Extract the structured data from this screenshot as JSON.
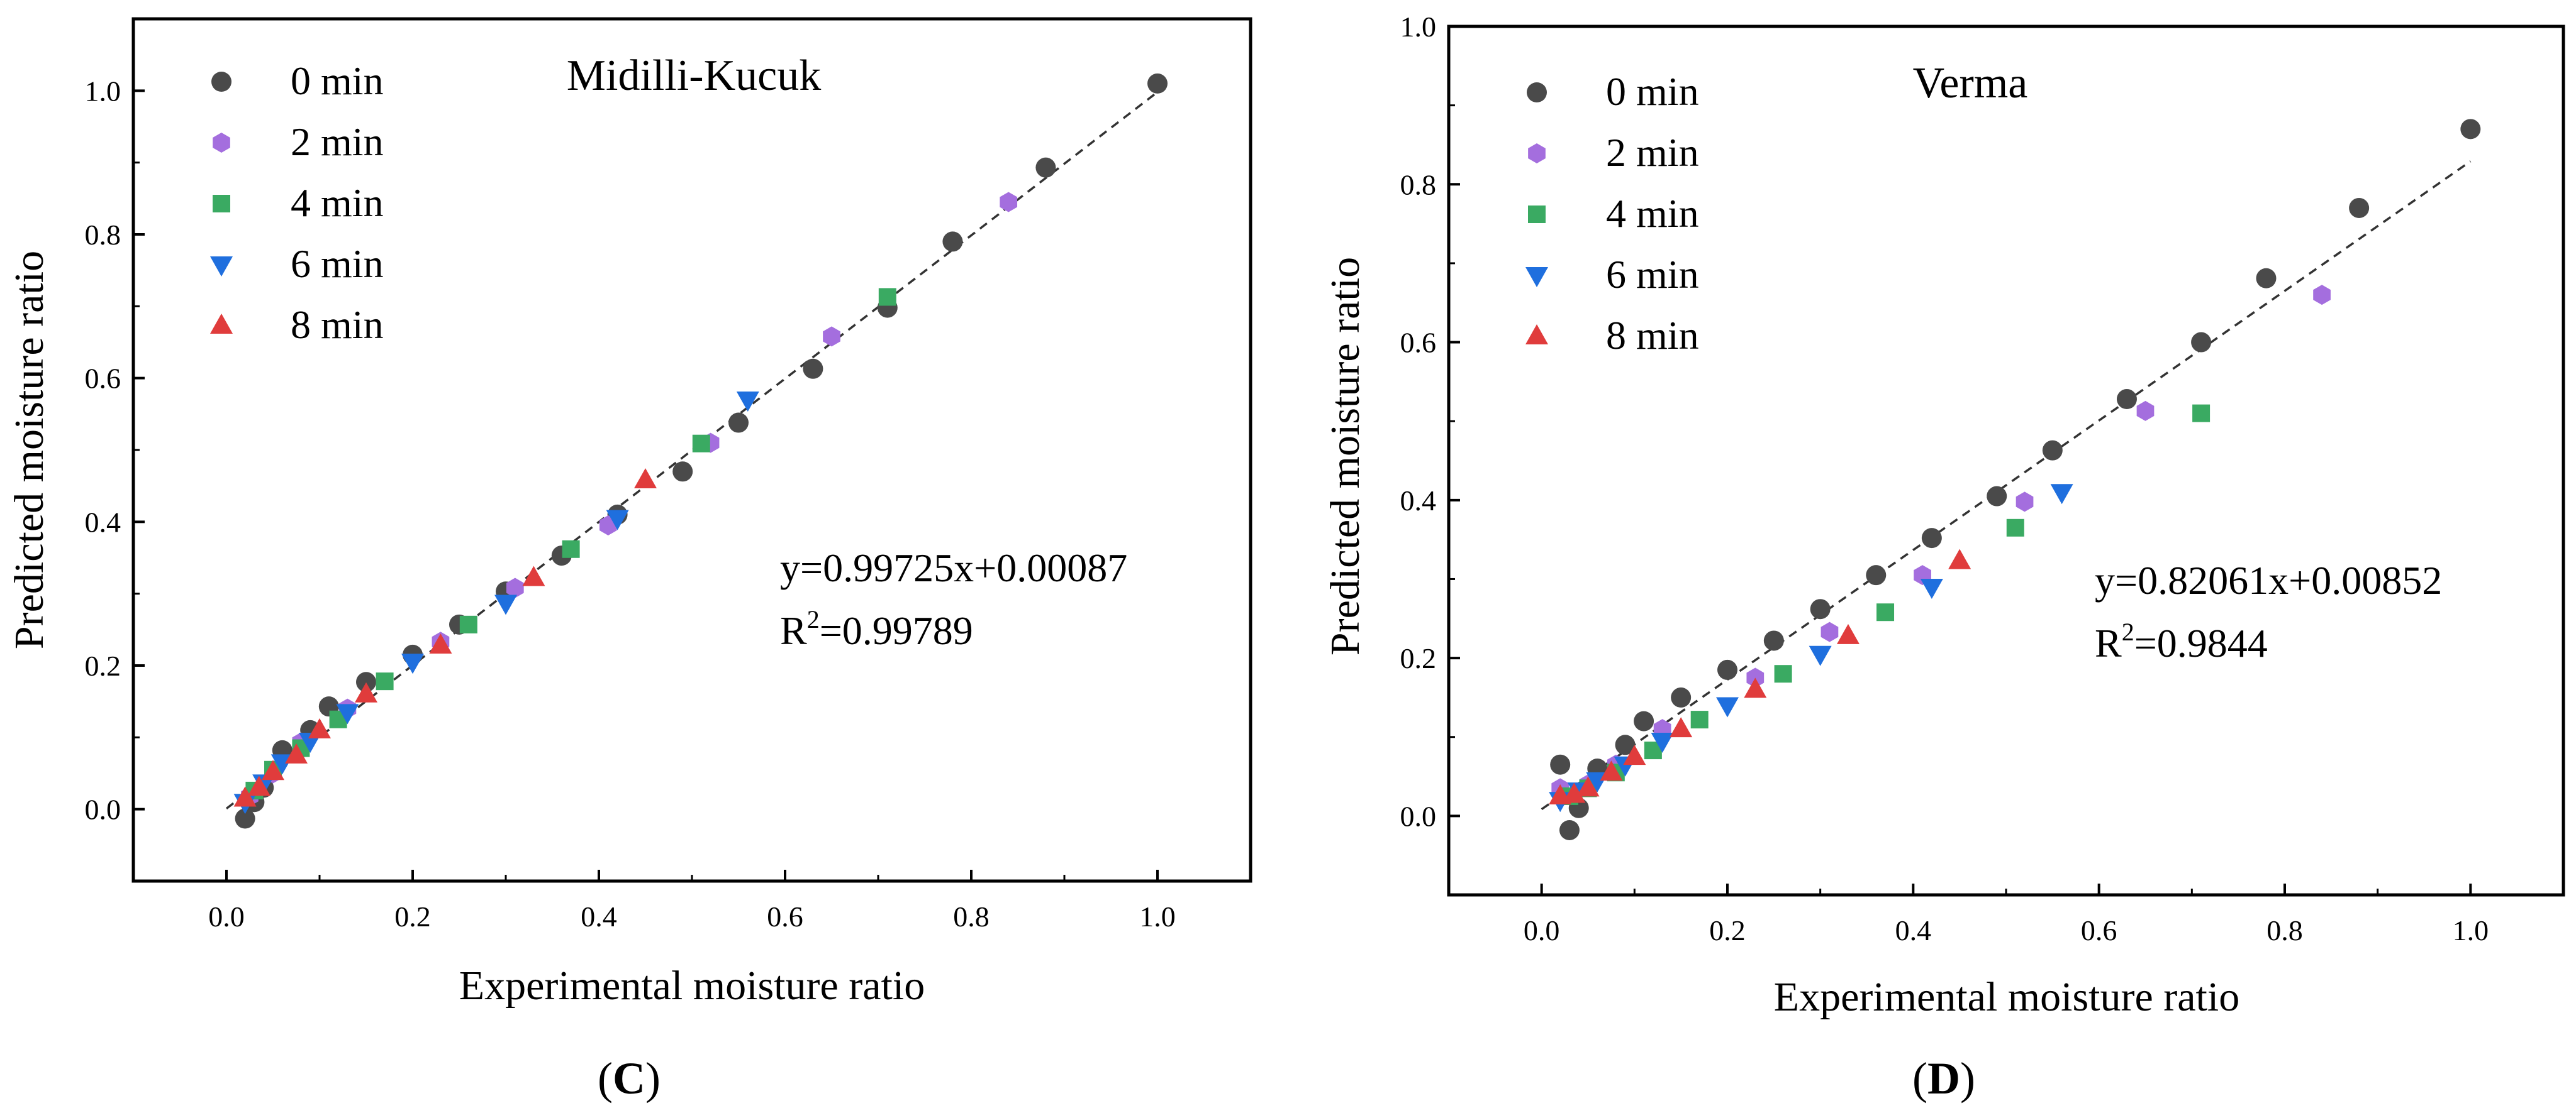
{
  "chart_data": [
    {
      "type": "scatter",
      "panel_label": "(C)",
      "panel_letter": "C",
      "title": "Midilli-Kucuk",
      "xlabel": "Experimental moisture ratio",
      "ylabel": "Predicted moisture ratio",
      "xlim": [
        -0.1,
        1.1
      ],
      "ylim": [
        -0.1,
        1.1
      ],
      "xticks": [
        "0.0",
        "0.2",
        "0.4",
        "0.6",
        "0.8",
        "1.0"
      ],
      "yticks": [
        "0.0",
        "0.2",
        "0.4",
        "0.6",
        "0.8",
        "1.0"
      ],
      "fit": {
        "slope": 0.99725,
        "intercept": 0.00087,
        "equation": "y=0.99725x+0.00087",
        "r2_prefix": "R",
        "r2_sup": "2",
        "r2_value": "=0.99789"
      },
      "legend_position": "top-left",
      "series": [
        {
          "name": "0 min",
          "color": "#4a4a4a",
          "marker": "circle",
          "x": [
            0.02,
            0.03,
            0.04,
            0.06,
            0.09,
            0.11,
            0.15,
            0.2,
            0.25,
            0.3,
            0.36,
            0.42,
            0.49,
            0.55,
            0.63,
            0.71,
            0.78,
            0.88,
            1.0
          ],
          "y": [
            -0.013,
            0.01,
            0.03,
            0.082,
            0.11,
            0.143,
            0.177,
            0.215,
            0.257,
            0.303,
            0.353,
            0.41,
            0.47,
            0.538,
            0.613,
            0.698,
            0.79,
            0.893,
            1.01
          ]
        },
        {
          "name": "2 min",
          "color": "#a46ede",
          "marker": "hexagon",
          "x": [
            0.025,
            0.05,
            0.08,
            0.13,
            0.23,
            0.31,
            0.41,
            0.52,
            0.65,
            0.84
          ],
          "y": [
            0.018,
            0.05,
            0.093,
            0.14,
            0.233,
            0.308,
            0.395,
            0.51,
            0.658,
            0.845
          ]
        },
        {
          "name": "4 min",
          "color": "#3aaa62",
          "marker": "square",
          "x": [
            0.03,
            0.05,
            0.08,
            0.12,
            0.17,
            0.26,
            0.37,
            0.51,
            0.71
          ],
          "y": [
            0.026,
            0.055,
            0.085,
            0.125,
            0.178,
            0.257,
            0.362,
            0.509,
            0.713
          ]
        },
        {
          "name": "6 min",
          "color": "#1f6fde",
          "marker": "triangle-down",
          "x": [
            0.02,
            0.04,
            0.06,
            0.09,
            0.13,
            0.2,
            0.3,
            0.42,
            0.56
          ],
          "y": [
            0.01,
            0.037,
            0.065,
            0.095,
            0.135,
            0.205,
            0.287,
            0.405,
            0.57
          ]
        },
        {
          "name": "8 min",
          "color": "#e03c3c",
          "marker": "triangle-up",
          "x": [
            0.02,
            0.035,
            0.05,
            0.075,
            0.1,
            0.15,
            0.23,
            0.33,
            0.45
          ],
          "y": [
            0.015,
            0.03,
            0.052,
            0.075,
            0.11,
            0.16,
            0.228,
            0.322,
            0.458
          ]
        }
      ]
    },
    {
      "type": "scatter",
      "panel_label": "(D)",
      "panel_letter": "D",
      "title": "Verma",
      "xlabel": "Experimental moisture ratio",
      "ylabel": "Predicted moisture ratio",
      "xlim": [
        -0.1,
        1.1
      ],
      "ylim": [
        -0.1,
        1.0
      ],
      "xticks": [
        "0.0",
        "0.2",
        "0.4",
        "0.6",
        "0.8",
        "1.0"
      ],
      "yticks": [
        "0.0",
        "0.2",
        "0.4",
        "0.6",
        "0.8",
        "1.0"
      ],
      "fit": {
        "slope": 0.82061,
        "intercept": 0.00852,
        "equation": "y=0.82061x+0.00852",
        "r2_prefix": "R",
        "r2_sup": "2",
        "r2_value": "=0.9844"
      },
      "legend_position": "top-left",
      "series": [
        {
          "name": "0 min",
          "color": "#4a4a4a",
          "marker": "circle",
          "x": [
            0.02,
            0.03,
            0.04,
            0.06,
            0.09,
            0.11,
            0.15,
            0.2,
            0.25,
            0.3,
            0.36,
            0.42,
            0.49,
            0.55,
            0.63,
            0.71,
            0.78,
            0.88,
            1.0
          ],
          "y": [
            0.065,
            -0.018,
            0.01,
            0.06,
            0.09,
            0.12,
            0.15,
            0.185,
            0.222,
            0.262,
            0.305,
            0.352,
            0.405,
            0.463,
            0.528,
            0.6,
            0.681,
            0.77,
            0.87
          ]
        },
        {
          "name": "2 min",
          "color": "#a46ede",
          "marker": "hexagon",
          "x": [
            0.02,
            0.05,
            0.08,
            0.13,
            0.23,
            0.31,
            0.41,
            0.52,
            0.65,
            0.84
          ],
          "y": [
            0.035,
            0.04,
            0.065,
            0.11,
            0.175,
            0.233,
            0.305,
            0.398,
            0.513,
            0.66
          ]
        },
        {
          "name": "4 min",
          "color": "#3aaa62",
          "marker": "square",
          "x": [
            0.03,
            0.05,
            0.08,
            0.12,
            0.17,
            0.26,
            0.37,
            0.51,
            0.71
          ],
          "y": [
            0.025,
            0.035,
            0.055,
            0.083,
            0.122,
            0.18,
            0.258,
            0.365,
            0.51
          ]
        },
        {
          "name": "6 min",
          "color": "#1f6fde",
          "marker": "triangle-down",
          "x": [
            0.02,
            0.04,
            0.06,
            0.09,
            0.13,
            0.2,
            0.3,
            0.42,
            0.56
          ],
          "y": [
            0.02,
            0.032,
            0.045,
            0.065,
            0.095,
            0.14,
            0.205,
            0.29,
            0.41
          ]
        },
        {
          "name": "8 min",
          "color": "#e03c3c",
          "marker": "triangle-up",
          "x": [
            0.02,
            0.035,
            0.05,
            0.075,
            0.1,
            0.15,
            0.23,
            0.33,
            0.45
          ],
          "y": [
            0.025,
            0.027,
            0.035,
            0.055,
            0.075,
            0.11,
            0.16,
            0.228,
            0.323
          ]
        }
      ]
    }
  ]
}
